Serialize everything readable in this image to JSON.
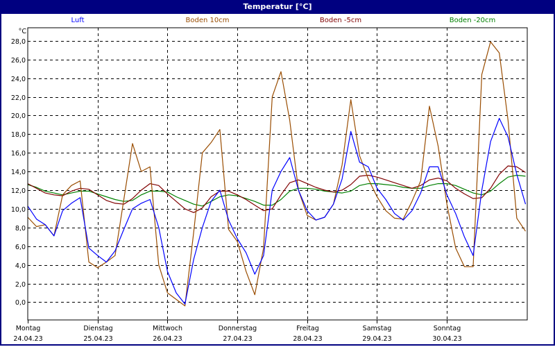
{
  "window": {
    "title": "Temperatur [°C]"
  },
  "chart_data": {
    "type": "line",
    "title": "Temperatur [°C]",
    "ylabel": "°C",
    "xlabel": "",
    "ylim": [
      -1.9,
      29.4
    ],
    "xlim": [
      "24.04.23 00:00",
      "01.05.23 03:36"
    ],
    "grid": true,
    "legend_position": "top",
    "y_ticks": [
      "0,0",
      "2,0",
      "4,0",
      "6,0",
      "8,0",
      "10,0",
      "12,0",
      "14,0",
      "16,0",
      "18,0",
      "20,0",
      "22,0",
      "24,0",
      "26,0",
      "28,0"
    ],
    "y_tick_values": [
      0,
      2,
      4,
      6,
      8,
      10,
      12,
      14,
      16,
      18,
      20,
      22,
      24,
      26,
      28
    ],
    "x_ticks": [
      {
        "day": "Montag",
        "date": "24.04.23"
      },
      {
        "day": "Dienstag",
        "date": "25.04.23"
      },
      {
        "day": "Mittwoch",
        "date": "26.04.23"
      },
      {
        "day": "Donnerstag",
        "date": "27.04.23"
      },
      {
        "day": "Freitag",
        "date": "28.04.23"
      },
      {
        "day": "Samstag",
        "date": "29.04.23"
      },
      {
        "day": "Sonntag",
        "date": "30.04.23"
      }
    ],
    "x": [
      "24.04.23 00:00",
      "24.04.23 03:00",
      "24.04.23 06:00",
      "24.04.23 09:00",
      "24.04.23 12:00",
      "24.04.23 15:00",
      "24.04.23 18:00",
      "24.04.23 21:00",
      "25.04.23 00:00",
      "25.04.23 03:00",
      "25.04.23 06:00",
      "25.04.23 09:00",
      "25.04.23 12:00",
      "25.04.23 15:00",
      "25.04.23 18:00",
      "25.04.23 21:00",
      "26.04.23 00:00",
      "26.04.23 03:00",
      "26.04.23 06:00",
      "26.04.23 09:00",
      "26.04.23 12:00",
      "26.04.23 15:00",
      "26.04.23 18:00",
      "26.04.23 21:00",
      "27.04.23 00:00",
      "27.04.23 03:00",
      "27.04.23 06:00",
      "27.04.23 09:00",
      "27.04.23 12:00",
      "27.04.23 15:00",
      "27.04.23 18:00",
      "27.04.23 21:00",
      "28.04.23 00:00",
      "28.04.23 03:00",
      "28.04.23 06:00",
      "28.04.23 09:00",
      "28.04.23 12:00",
      "28.04.23 15:00",
      "28.04.23 18:00",
      "28.04.23 21:00",
      "29.04.23 00:00",
      "29.04.23 03:00",
      "29.04.23 06:00",
      "29.04.23 09:00",
      "29.04.23 12:00",
      "29.04.23 15:00",
      "29.04.23 18:00",
      "29.04.23 21:00",
      "30.04.23 00:00",
      "30.04.23 03:00",
      "30.04.23 06:00",
      "30.04.23 09:00",
      "30.04.23 12:00",
      "30.04.23 15:00",
      "30.04.23 18:00",
      "30.04.23 21:00",
      "01.05.23 00:00",
      "01.05.23 03:00"
    ],
    "series": [
      {
        "name": "Luft",
        "color": "#0000ff",
        "values": [
          10.3,
          8.9,
          8.3,
          7.1,
          9.8,
          10.6,
          11.2,
          5.8,
          5.0,
          4.3,
          5.5,
          7.8,
          10.0,
          10.6,
          11.0,
          8.0,
          3.3,
          1.0,
          -0.2,
          4.6,
          8.0,
          10.8,
          12.0,
          8.8,
          6.8,
          5.3,
          3.0,
          5.0,
          12.0,
          14.0,
          15.5,
          12.0,
          9.8,
          8.8,
          9.1,
          10.5,
          13.2,
          18.3,
          15.0,
          14.5,
          12.2,
          11.0,
          9.5,
          8.8,
          9.8,
          11.7,
          14.5,
          14.5,
          11.5,
          9.5,
          7.0,
          5.0,
          12.0,
          17.2,
          19.7,
          17.7,
          13.7,
          10.5
        ]
      },
      {
        "name": "Boden 10cm",
        "color": "#994c00",
        "values": [
          9.1,
          8.1,
          8.3,
          7.1,
          11.5,
          12.5,
          13.0,
          4.3,
          3.7,
          4.3,
          5.0,
          11.0,
          17.0,
          14.0,
          14.5,
          4.0,
          1.0,
          0.3,
          -0.4,
          7.5,
          16.0,
          17.1,
          18.5,
          7.8,
          6.5,
          3.3,
          0.8,
          5.8,
          22.0,
          24.7,
          19.5,
          12.0,
          9.3,
          8.8,
          9.1,
          10.5,
          14.7,
          21.7,
          15.7,
          13.2,
          11.3,
          9.8,
          9.0,
          8.9,
          10.8,
          13.0,
          21.0,
          16.7,
          10.5,
          5.8,
          3.8,
          3.8,
          24.4,
          27.9,
          26.7,
          19.5,
          9.0,
          7.6
        ]
      },
      {
        "name": "Boden -5cm",
        "color": "#800000",
        "values": [
          12.7,
          12.2,
          11.7,
          11.5,
          11.4,
          11.9,
          12.2,
          12.1,
          11.5,
          10.9,
          10.6,
          10.5,
          11.1,
          12.0,
          12.7,
          12.5,
          11.6,
          10.8,
          10.0,
          9.6,
          10.1,
          11.3,
          11.9,
          11.9,
          11.5,
          11.0,
          10.4,
          9.8,
          10.0,
          11.5,
          12.8,
          13.1,
          12.7,
          12.3,
          12.0,
          11.8,
          12.0,
          12.6,
          13.5,
          13.6,
          13.4,
          13.1,
          12.8,
          12.5,
          12.2,
          12.5,
          13.1,
          13.3,
          13.0,
          12.2,
          11.6,
          11.1,
          11.2,
          12.2,
          13.7,
          14.6,
          14.5,
          13.9
        ]
      },
      {
        "name": "Boden -20cm",
        "color": "#008000",
        "values": [
          12.6,
          12.3,
          11.9,
          11.7,
          11.5,
          11.7,
          11.9,
          11.9,
          11.6,
          11.3,
          11.0,
          10.8,
          10.9,
          11.5,
          11.9,
          11.9,
          11.8,
          11.3,
          10.9,
          10.5,
          10.3,
          10.8,
          11.3,
          11.5,
          11.4,
          11.1,
          10.8,
          10.4,
          10.4,
          11.0,
          11.9,
          12.2,
          12.2,
          12.1,
          11.9,
          11.8,
          11.7,
          11.9,
          12.5,
          12.7,
          12.7,
          12.6,
          12.5,
          12.3,
          12.2,
          12.2,
          12.5,
          12.7,
          12.7,
          12.5,
          12.1,
          11.7,
          11.5,
          11.9,
          12.7,
          13.4,
          13.6,
          13.5
        ]
      }
    ]
  }
}
